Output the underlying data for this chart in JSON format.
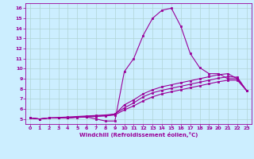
{
  "xlabel": "Windchill (Refroidissement éolien,°C)",
  "bg_color": "#cceeff",
  "grid_color": "#b0d4d4",
  "line_color": "#990099",
  "xlim": [
    -0.5,
    23.5
  ],
  "ylim": [
    4.5,
    16.5
  ],
  "xticks": [
    0,
    1,
    2,
    3,
    4,
    5,
    6,
    7,
    8,
    9,
    10,
    11,
    12,
    13,
    14,
    15,
    16,
    17,
    18,
    19,
    20,
    21,
    22,
    23
  ],
  "yticks": [
    5,
    6,
    7,
    8,
    9,
    10,
    11,
    12,
    13,
    14,
    15,
    16
  ],
  "lines": [
    {
      "x": [
        0,
        1,
        2,
        3,
        4,
        5,
        6,
        7,
        8,
        9,
        10,
        11,
        12,
        13,
        14,
        15,
        16,
        17,
        18,
        19,
        20,
        21,
        22,
        23
      ],
      "y": [
        5.1,
        5.0,
        5.1,
        5.1,
        5.1,
        5.2,
        5.2,
        5.0,
        4.8,
        4.8,
        9.7,
        11.0,
        13.3,
        15.0,
        15.8,
        16.0,
        14.2,
        11.5,
        10.1,
        9.5,
        9.5,
        9.0,
        9.0,
        7.8
      ]
    },
    {
      "x": [
        0,
        1,
        2,
        3,
        4,
        5,
        6,
        7,
        8,
        9,
        10,
        11,
        12,
        13,
        14,
        15,
        16,
        17,
        18,
        19,
        20,
        21,
        22,
        23
      ],
      "y": [
        5.1,
        5.0,
        5.1,
        5.1,
        5.1,
        5.15,
        5.2,
        5.25,
        5.3,
        5.4,
        5.9,
        6.3,
        6.8,
        7.2,
        7.5,
        7.7,
        7.9,
        8.1,
        8.3,
        8.5,
        8.7,
        8.85,
        8.85,
        7.8
      ]
    },
    {
      "x": [
        0,
        1,
        2,
        3,
        4,
        5,
        6,
        7,
        8,
        9,
        10,
        11,
        12,
        13,
        14,
        15,
        16,
        17,
        18,
        19,
        20,
        21,
        22,
        23
      ],
      "y": [
        5.1,
        5.0,
        5.1,
        5.15,
        5.2,
        5.25,
        5.3,
        5.35,
        5.4,
        5.5,
        6.1,
        6.6,
        7.2,
        7.6,
        7.85,
        8.05,
        8.25,
        8.45,
        8.65,
        8.85,
        9.05,
        9.2,
        9.15,
        7.8
      ]
    },
    {
      "x": [
        0,
        1,
        2,
        3,
        4,
        5,
        6,
        7,
        8,
        9,
        10,
        11,
        12,
        13,
        14,
        15,
        16,
        17,
        18,
        19,
        20,
        21,
        22,
        23
      ],
      "y": [
        5.1,
        5.0,
        5.1,
        5.1,
        5.1,
        5.2,
        5.25,
        5.3,
        5.35,
        5.45,
        6.4,
        6.9,
        7.5,
        7.9,
        8.2,
        8.4,
        8.6,
        8.8,
        9.0,
        9.2,
        9.4,
        9.5,
        9.0,
        7.8
      ]
    }
  ]
}
